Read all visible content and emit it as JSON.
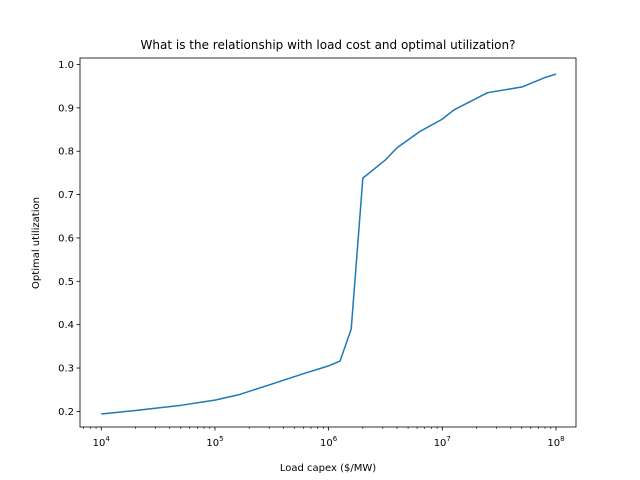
{
  "chart_data": {
    "type": "line",
    "title": "What is the relationship with load cost and optimal utilization?",
    "xlabel": "Load capex ($/MW)",
    "ylabel": "Optimal utilization",
    "xscale": "log",
    "xlim": [
      6500,
      150000000
    ],
    "ylim": [
      0.164,
      1.015
    ],
    "grid": false,
    "legend": "none",
    "x_ticks": [
      {
        "value": 10000,
        "base": "10",
        "exp": "4"
      },
      {
        "value": 100000,
        "base": "10",
        "exp": "5"
      },
      {
        "value": 1000000,
        "base": "10",
        "exp": "6"
      },
      {
        "value": 10000000,
        "base": "10",
        "exp": "7"
      },
      {
        "value": 100000000,
        "base": "10",
        "exp": "8"
      }
    ],
    "y_ticks": [
      {
        "value": 0.2,
        "label": "0.2"
      },
      {
        "value": 0.3,
        "label": "0.3"
      },
      {
        "value": 0.4,
        "label": "0.4"
      },
      {
        "value": 0.5,
        "label": "0.5"
      },
      {
        "value": 0.6,
        "label": "0.6"
      },
      {
        "value": 0.7,
        "label": "0.7"
      },
      {
        "value": 0.8,
        "label": "0.8"
      },
      {
        "value": 0.9,
        "label": "0.9"
      },
      {
        "value": 1.0,
        "label": "1.0"
      }
    ],
    "series": [
      {
        "color": "#1f77b4",
        "x": [
          10000,
          20000,
          50000,
          100000,
          160000,
          300000,
          600000,
          1000000,
          1260000,
          1580000,
          2000000,
          3160000,
          4000000,
          6300000,
          10000000,
          12600000,
          20000000,
          25000000,
          50000000,
          80000000,
          100000000
        ],
        "y": [
          0.194,
          0.202,
          0.214,
          0.226,
          0.238,
          0.261,
          0.287,
          0.305,
          0.316,
          0.39,
          0.738,
          0.78,
          0.808,
          0.845,
          0.874,
          0.895,
          0.922,
          0.935,
          0.948,
          0.97,
          0.978
        ]
      }
    ]
  }
}
